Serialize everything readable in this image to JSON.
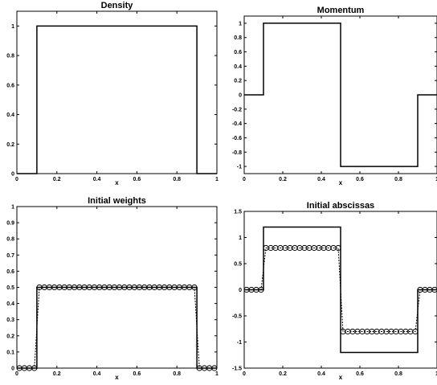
{
  "chart_data": [
    {
      "type": "line",
      "title": "Density",
      "xlabel": "x",
      "ylabel": "",
      "xlim": [
        0,
        1
      ],
      "ylim": [
        0,
        1.1
      ],
      "xticks": [
        "0",
        "0.2",
        "0.4",
        "0.6",
        "0.8",
        "1"
      ],
      "yticks": [
        "0",
        "0.2",
        "0.4",
        "0.6",
        "0.8",
        "1"
      ],
      "grid": false,
      "series": [
        {
          "style": "line",
          "color": "#000000",
          "x": [
            0,
            0.1,
            0.1,
            0.9,
            0.9,
            1
          ],
          "y": [
            0,
            0,
            1,
            1,
            0,
            0
          ]
        }
      ]
    },
    {
      "type": "line",
      "title": "Momentum",
      "xlabel": "x",
      "ylabel": "",
      "xlim": [
        0,
        1
      ],
      "ylim": [
        -1.1,
        1.1
      ],
      "xticks": [
        "0",
        "0.2",
        "0.4",
        "0.6",
        "0.8",
        "1"
      ],
      "yticks": [
        "-1",
        "-0.8",
        "-0.6",
        "-0.4",
        "-0.2",
        "0",
        "0.2",
        "0.4",
        "0.6",
        "0.8",
        "1"
      ],
      "grid": false,
      "series": [
        {
          "style": "line",
          "color": "#000000",
          "x": [
            0,
            0.1,
            0.1,
            0.5,
            0.5,
            0.9,
            0.9,
            1
          ],
          "y": [
            0,
            0,
            1,
            1,
            -1,
            -1,
            0,
            0
          ]
        }
      ]
    },
    {
      "type": "line",
      "title": "Initial weights",
      "xlabel": "x",
      "ylabel": "",
      "xlim": [
        0,
        1
      ],
      "ylim": [
        0,
        1
      ],
      "xticks": [
        "0",
        "0.2",
        "0.4",
        "0.6",
        "0.8",
        "1"
      ],
      "yticks": [
        "0",
        "0.1",
        "0.2",
        "0.3",
        "0.4",
        "0.5",
        "0.6",
        "0.7",
        "0.8",
        "0.9",
        "1"
      ],
      "grid": false,
      "series": [
        {
          "style": "line",
          "color": "#000000",
          "x": [
            0,
            0.1,
            0.1,
            0.9,
            0.9,
            1
          ],
          "y": [
            0,
            0,
            0.5,
            0.5,
            0,
            0
          ]
        },
        {
          "style": "markers",
          "marker": "circle",
          "color": "#000000",
          "x": [
            0.0125,
            0.0375,
            0.0625,
            0.0875,
            0.1125,
            0.1375,
            0.1625,
            0.1875,
            0.2125,
            0.2375,
            0.2625,
            0.2875,
            0.3125,
            0.3375,
            0.3625,
            0.3875,
            0.4125,
            0.4375,
            0.4625,
            0.4875,
            0.5125,
            0.5375,
            0.5625,
            0.5875,
            0.6125,
            0.6375,
            0.6625,
            0.6875,
            0.7125,
            0.7375,
            0.7625,
            0.7875,
            0.8125,
            0.8375,
            0.8625,
            0.8875,
            0.9125,
            0.9375,
            0.9625,
            0.9875
          ],
          "y": [
            0,
            0,
            0,
            0,
            0.5,
            0.5,
            0.5,
            0.5,
            0.5,
            0.5,
            0.5,
            0.5,
            0.5,
            0.5,
            0.5,
            0.5,
            0.5,
            0.5,
            0.5,
            0.5,
            0.5,
            0.5,
            0.5,
            0.5,
            0.5,
            0.5,
            0.5,
            0.5,
            0.5,
            0.5,
            0.5,
            0.5,
            0.5,
            0.5,
            0.5,
            0.5,
            0,
            0,
            0,
            0
          ]
        }
      ]
    },
    {
      "type": "line",
      "title": "Initial abscissas",
      "xlabel": "x",
      "ylabel": "",
      "xlim": [
        0,
        1
      ],
      "ylim": [
        -1.5,
        1.5
      ],
      "xticks": [
        "0",
        "0.2",
        "0.4",
        "0.6",
        "0.8",
        "1"
      ],
      "yticks": [
        "-1.5",
        "-1",
        "-0.5",
        "0",
        "0.5",
        "1",
        "1.5"
      ],
      "grid": false,
      "series": [
        {
          "style": "line",
          "color": "#000000",
          "x": [
            0,
            0.1,
            0.1,
            0.5,
            0.5,
            0.9,
            0.9,
            1
          ],
          "y": [
            0,
            0,
            1.2,
            1.2,
            -1.2,
            -1.2,
            0,
            0
          ]
        },
        {
          "style": "markers",
          "marker": "circle",
          "color": "#000000",
          "x": [
            0.0125,
            0.0375,
            0.0625,
            0.0875,
            0.1125,
            0.1375,
            0.1625,
            0.1875,
            0.2125,
            0.2375,
            0.2625,
            0.2875,
            0.3125,
            0.3375,
            0.3625,
            0.3875,
            0.4125,
            0.4375,
            0.4625,
            0.4875,
            0.5125,
            0.5375,
            0.5625,
            0.5875,
            0.6125,
            0.6375,
            0.6625,
            0.6875,
            0.7125,
            0.7375,
            0.7625,
            0.7875,
            0.8125,
            0.8375,
            0.8625,
            0.8875,
            0.9125,
            0.9375,
            0.9625,
            0.9875
          ],
          "y": [
            0,
            0,
            0,
            0,
            0.8,
            0.8,
            0.8,
            0.8,
            0.8,
            0.8,
            0.8,
            0.8,
            0.8,
            0.8,
            0.8,
            0.8,
            0.8,
            0.8,
            0.8,
            0.8,
            -0.8,
            -0.8,
            -0.8,
            -0.8,
            -0.8,
            -0.8,
            -0.8,
            -0.8,
            -0.8,
            -0.8,
            -0.8,
            -0.8,
            -0.8,
            -0.8,
            -0.8,
            -0.8,
            0,
            0,
            0,
            0
          ]
        }
      ]
    }
  ]
}
